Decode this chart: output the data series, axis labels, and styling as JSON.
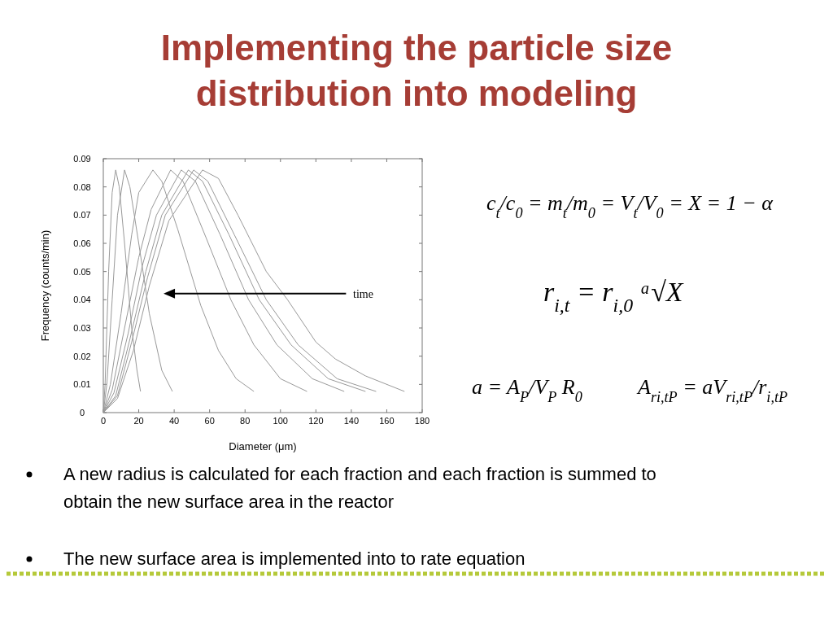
{
  "chart_data": {
    "type": "line",
    "title": "Implementing the particle size distribution into modeling",
    "xlabel": "Diameter (μm)",
    "ylabel": "Frequency (counts/min)",
    "xlim": [
      0,
      180
    ],
    "xticks": [
      0,
      20,
      40,
      60,
      80,
      100,
      120,
      140,
      160,
      180
    ],
    "ylim": [
      0,
      0.09
    ],
    "yticks": [
      0,
      0.01,
      0.02,
      0.03,
      0.04,
      0.05,
      0.06,
      0.07,
      0.08,
      0.09
    ],
    "grid": false,
    "marker": "none",
    "line_style": "solid",
    "series": [
      {
        "color": "#999999",
        "x": [
          0,
          1,
          3,
          5,
          7,
          9,
          12,
          16,
          19,
          21
        ],
        "values": [
          0,
          0.01,
          0.05,
          0.078,
          0.086,
          0.08,
          0.06,
          0.03,
          0.015,
          0.0075
        ]
      },
      {
        "color": "#999999",
        "x": [
          0,
          2,
          5,
          8,
          12,
          15,
          20,
          26,
          33,
          39
        ],
        "values": [
          0,
          0.01,
          0.04,
          0.07,
          0.086,
          0.08,
          0.06,
          0.035,
          0.015,
          0.0075
        ]
      },
      {
        "color": "#999999",
        "x": [
          0,
          4,
          10,
          16,
          20,
          28,
          33,
          42,
          55,
          65,
          75,
          85
        ],
        "values": [
          0,
          0.01,
          0.035,
          0.063,
          0.078,
          0.086,
          0.082,
          0.065,
          0.038,
          0.022,
          0.012,
          0.0075
        ]
      },
      {
        "color": "#999999",
        "x": [
          0,
          5,
          12,
          20,
          27,
          38,
          45,
          58,
          72,
          85,
          100,
          115
        ],
        "values": [
          0,
          0.008,
          0.03,
          0.055,
          0.072,
          0.086,
          0.082,
          0.062,
          0.04,
          0.024,
          0.012,
          0.0075
        ]
      },
      {
        "color": "#999999",
        "x": [
          0,
          6,
          14,
          22,
          30,
          44,
          52,
          66,
          82,
          98,
          118,
          136
        ],
        "values": [
          0,
          0.007,
          0.028,
          0.052,
          0.07,
          0.086,
          0.082,
          0.063,
          0.04,
          0.024,
          0.012,
          0.0075
        ]
      },
      {
        "color": "#999999",
        "x": [
          0,
          7,
          15,
          24,
          33,
          48,
          56,
          71,
          88,
          106,
          127,
          148
        ],
        "values": [
          0,
          0.006,
          0.026,
          0.05,
          0.07,
          0.086,
          0.082,
          0.063,
          0.04,
          0.024,
          0.012,
          0.0075
        ]
      },
      {
        "color": "#999999",
        "x": [
          0,
          8,
          16,
          25,
          35,
          51,
          59,
          74,
          92,
          110,
          132,
          154
        ],
        "values": [
          0,
          0.006,
          0.025,
          0.048,
          0.07,
          0.086,
          0.082,
          0.063,
          0.04,
          0.024,
          0.012,
          0.0075
        ]
      },
      {
        "color": "#999999",
        "x": [
          0,
          8,
          17,
          26,
          37,
          56,
          65,
          76,
          92,
          104,
          120,
          131,
          148,
          170
        ],
        "values": [
          0,
          0.005,
          0.022,
          0.045,
          0.068,
          0.086,
          0.083,
          0.07,
          0.05,
          0.04,
          0.025,
          0.019,
          0.013,
          0.0075
        ]
      }
    ],
    "annotations": [
      "time",
      "c$_{t}$/c$_{0}$ = m$_{t}$/m$_{0}$ = V$_{t}$/V$_{0}$ = X = 1 − α",
      "r$_{i,t}$ = r$_{i,0}$ ᵃ√X",
      "a = A$_{P}$/V$_{P}$ R$_{0}$",
      "A$_{ri,tP}$ = aV$_{ri,tP}$/r$_{i,tP}$",
      "A new radius is calculated for each fraction and each fraction is summed to obtain the new surface area in the reactor",
      "The new surface area is implemented into to rate equation"
    ]
  }
}
